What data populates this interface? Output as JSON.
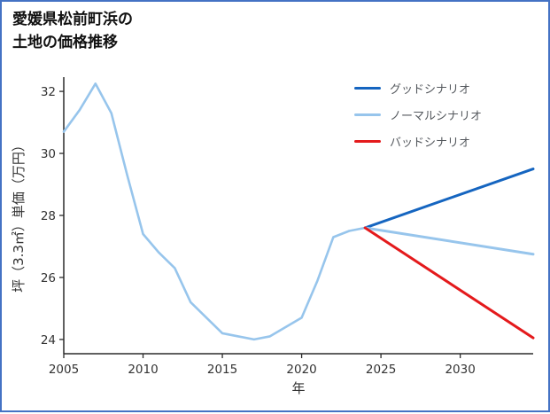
{
  "page": {
    "title": "愛媛県松前町浜の\n土地の価格推移",
    "border_color": "#4472c4"
  },
  "chart_data": {
    "type": "line",
    "title": "愛媛県松前町浜の土地の価格推移",
    "xlabel": "年",
    "ylabel": "坪（3.3㎡）単価（万円）",
    "xlim": [
      2005,
      2034.6
    ],
    "ylim": [
      23.54,
      32.46
    ],
    "xticks": [
      2005,
      2010,
      2015,
      2020,
      2025,
      2030
    ],
    "yticks": [
      24,
      26,
      28,
      30,
      32
    ],
    "grid": false,
    "legend_position": "upper right",
    "series": [
      {
        "id": "historical",
        "in_legend": false,
        "color": "#97c5ec",
        "width": 2.6,
        "x": [
          2005,
          2006,
          2007,
          2008,
          2009,
          2010,
          2011,
          2012,
          2013,
          2014,
          2015,
          2016,
          2017,
          2018,
          2019,
          2020,
          2021,
          2022,
          2023,
          2024
        ],
        "y": [
          30.7,
          31.4,
          32.25,
          31.3,
          29.3,
          27.4,
          26.8,
          26.3,
          25.2,
          24.7,
          24.2,
          24.1,
          24.0,
          24.1,
          24.4,
          24.7,
          25.9,
          27.3,
          27.5,
          27.6
        ]
      },
      {
        "id": "good-scenario",
        "name": "グッドシナリオ",
        "in_legend": true,
        "color": "#1565c0",
        "width": 3,
        "x": [
          2024,
          2034.6
        ],
        "y": [
          27.6,
          29.5
        ]
      },
      {
        "id": "normal-scenario",
        "name": "ノーマルシナリオ",
        "in_legend": true,
        "color": "#97c5ec",
        "width": 3,
        "x": [
          2024,
          2034.6
        ],
        "y": [
          27.6,
          26.75
        ]
      },
      {
        "id": "bad-scenario",
        "name": "バッドシナリオ",
        "in_legend": true,
        "color": "#e41a1c",
        "width": 3,
        "x": [
          2024,
          2034.6
        ],
        "y": [
          27.6,
          24.05
        ]
      }
    ]
  }
}
